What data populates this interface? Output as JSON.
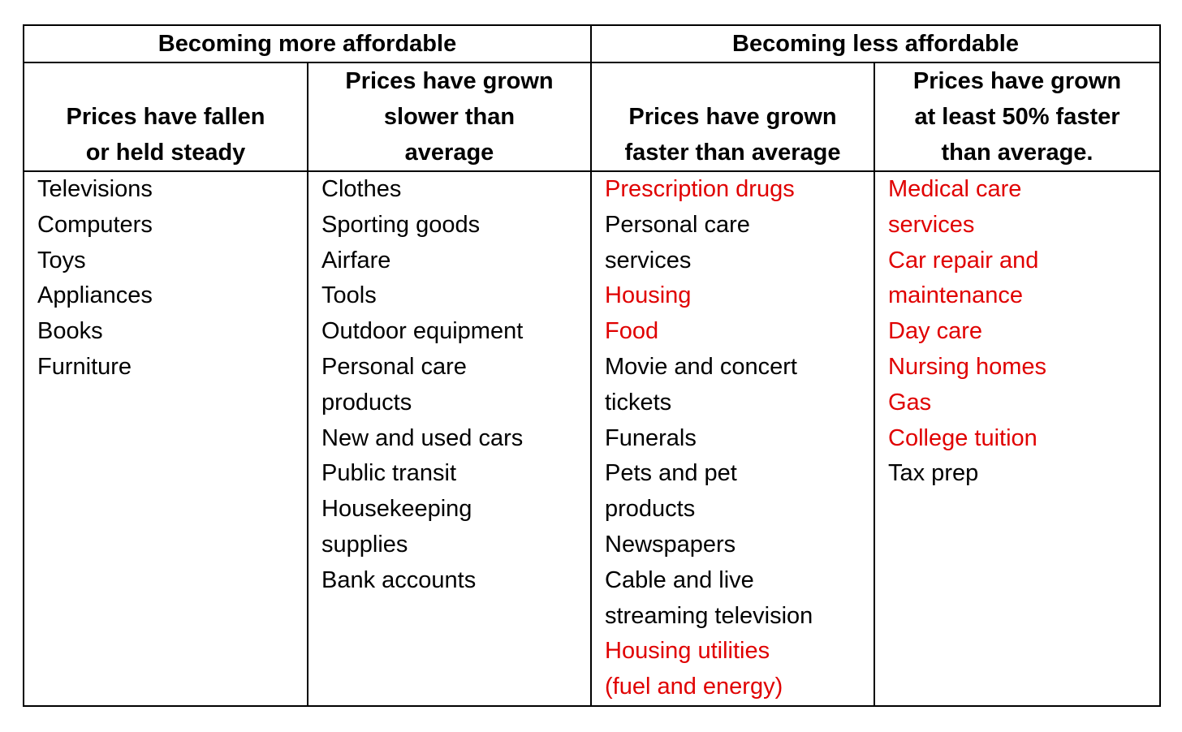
{
  "groups": {
    "more": "Becoming more affordable",
    "less": "Becoming less affordable"
  },
  "subheaders": [
    [
      "Prices have fallen",
      "or held steady"
    ],
    [
      "Prices have grown",
      "slower than",
      "average"
    ],
    [
      "Prices have grown",
      "faster than average"
    ],
    [
      "Prices have grown",
      "at least 50% faster",
      "than average."
    ]
  ],
  "columns": [
    {
      "items": [
        [
          "Televisions",
          false
        ],
        [
          "Computers",
          false
        ],
        [
          "Toys",
          false
        ],
        [
          "Appliances",
          false
        ],
        [
          "Books",
          false
        ],
        [
          "Furniture",
          false
        ]
      ]
    },
    {
      "items": [
        [
          "Clothes",
          false
        ],
        [
          "Sporting goods",
          false
        ],
        [
          "Airfare",
          false
        ],
        [
          "Tools",
          false
        ],
        [
          "Outdoor equipment",
          false
        ],
        [
          "Personal care",
          false
        ],
        [
          "products",
          false
        ],
        [
          "New and used cars",
          false
        ],
        [
          "Public transit",
          false
        ],
        [
          "Housekeeping",
          false
        ],
        [
          "supplies",
          false
        ],
        [
          "Bank accounts",
          false
        ]
      ]
    },
    {
      "items": [
        [
          "Prescription drugs",
          true
        ],
        [
          "Personal care",
          false
        ],
        [
          "services",
          false
        ],
        [
          "Housing",
          true
        ],
        [
          "Food",
          true
        ],
        [
          "Movie and concert",
          false
        ],
        [
          "tickets",
          false
        ],
        [
          "Funerals",
          false
        ],
        [
          "Pets and pet",
          false
        ],
        [
          "products",
          false
        ],
        [
          "Newspapers",
          false
        ],
        [
          "Cable and live",
          false
        ],
        [
          "streaming television",
          false
        ],
        [
          "Housing utilities",
          true
        ],
        [
          "(fuel and energy)",
          true
        ]
      ]
    },
    {
      "items": [
        [
          "Medical care",
          true
        ],
        [
          "services",
          true
        ],
        [
          "Car repair and",
          true
        ],
        [
          "maintenance",
          true
        ],
        [
          "Day care",
          true
        ],
        [
          "Nursing homes",
          true
        ],
        [
          "Gas",
          true
        ],
        [
          "College tuition",
          true
        ],
        [
          "Tax prep",
          false
        ]
      ]
    }
  ],
  "colors": {
    "highlight": "#e00000",
    "text": "#000000"
  }
}
